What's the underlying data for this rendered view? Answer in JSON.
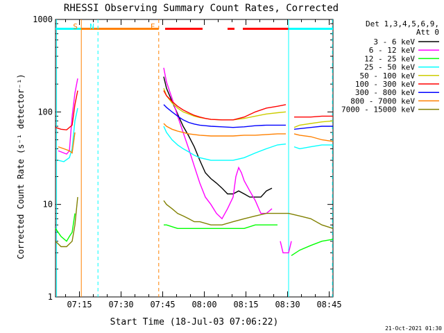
{
  "chart_data": {
    "type": "line",
    "title": "RHESSI Observing Summary Count Rates, Corrected",
    "xlabel": "Start Time (18-Jul-03 07:06:22)",
    "ylabel": "Corrected Count Rate (s⁻¹ detector⁻¹)",
    "footer": "21-Oct-2021 01:30",
    "y_scale": "log",
    "ylim": [
      1,
      1000
    ],
    "xlim_minutes": [
      0,
      100
    ],
    "x_ticks": [
      {
        "label": "07:15",
        "t": 8.63
      },
      {
        "label": "07:30",
        "t": 23.63
      },
      {
        "label": "07:45",
        "t": 38.63
      },
      {
        "label": "08:00",
        "t": 53.63
      },
      {
        "label": "08:15",
        "t": 68.63
      },
      {
        "label": "08:30",
        "t": 83.63
      },
      {
        "label": "08:45",
        "t": 98.63
      }
    ],
    "y_tick_labels": [
      {
        "label": "1",
        "v": 1
      },
      {
        "label": "10",
        "v": 10
      },
      {
        "label": "100",
        "v": 100
      },
      {
        "label": "1000",
        "v": 1000
      }
    ],
    "legend_header": [
      "Det 1,3,4,5,6,9,",
      "Att 0"
    ],
    "legend_position": "right",
    "series": [
      {
        "name": "3 - 6 keV",
        "color": "#000000",
        "segments": [
          [
            [
              39,
              240
            ],
            [
              40,
              180
            ],
            [
              42,
              130
            ],
            [
              44,
              95
            ],
            [
              46,
              70
            ],
            [
              48,
              55
            ],
            [
              50,
              42
            ],
            [
              52,
              30
            ],
            [
              54,
              22
            ],
            [
              56,
              19
            ],
            [
              58,
              17
            ],
            [
              60,
              15
            ],
            [
              62,
              13
            ],
            [
              64,
              13
            ],
            [
              66,
              14
            ],
            [
              68,
              13
            ],
            [
              70,
              12
            ],
            [
              72,
              12
            ],
            [
              74,
              12
            ],
            [
              76,
              14
            ],
            [
              78,
              15
            ]
          ]
        ]
      },
      {
        "name": "6 - 12 keV",
        "color": "#ff00ff",
        "segments": [
          [
            [
              1,
              38
            ],
            [
              2,
              37
            ],
            [
              3,
              36
            ],
            [
              4,
              35
            ],
            [
              5,
              38
            ],
            [
              6,
              90
            ],
            [
              7,
              160
            ],
            [
              8,
              230
            ]
          ],
          [
            [
              39,
              300
            ],
            [
              40,
              210
            ],
            [
              42,
              140
            ],
            [
              44,
              90
            ],
            [
              46,
              60
            ],
            [
              48,
              40
            ],
            [
              50,
              26
            ],
            [
              52,
              17
            ],
            [
              54,
              12
            ],
            [
              56,
              10
            ],
            [
              58,
              8
            ],
            [
              60,
              7
            ],
            [
              62,
              9
            ],
            [
              64,
              12
            ],
            [
              65,
              20
            ],
            [
              66,
              25
            ],
            [
              67,
              22
            ],
            [
              68,
              18
            ],
            [
              70,
              14
            ],
            [
              72,
              11
            ],
            [
              74,
              8
            ],
            [
              76,
              8
            ],
            [
              78,
              9
            ]
          ],
          [
            [
              81,
              4
            ],
            [
              82,
              3
            ],
            [
              84,
              3
            ],
            [
              85,
              4
            ]
          ]
        ]
      },
      {
        "name": "12 - 25 keV",
        "color": "#00ff00",
        "segments": [
          [
            [
              0,
              5.5
            ],
            [
              2,
              4.5
            ],
            [
              4,
              4
            ],
            [
              5,
              4.5
            ],
            [
              6,
              5
            ],
            [
              7,
              8
            ]
          ],
          [
            [
              39,
              6
            ],
            [
              40,
              6
            ],
            [
              44,
              5.5
            ],
            [
              48,
              5.5
            ],
            [
              52,
              5.5
            ],
            [
              56,
              5.5
            ],
            [
              60,
              5.5
            ],
            [
              64,
              5.5
            ],
            [
              68,
              5.5
            ],
            [
              72,
              6
            ],
            [
              76,
              6
            ],
            [
              80,
              6
            ]
          ],
          [
            [
              85,
              2.8
            ],
            [
              88,
              3.2
            ],
            [
              92,
              3.6
            ],
            [
              96,
              4.0
            ],
            [
              100,
              4.2
            ]
          ]
        ]
      },
      {
        "name": "25 - 50 keV",
        "color": "#00ffff",
        "segments": [
          [
            [
              1,
              30
            ],
            [
              3,
              29
            ],
            [
              5,
              32
            ],
            [
              6,
              40
            ],
            [
              7,
              80
            ],
            [
              8,
              110
            ]
          ],
          [
            [
              39,
              70
            ],
            [
              40,
              60
            ],
            [
              42,
              50
            ],
            [
              44,
              44
            ],
            [
              46,
              40
            ],
            [
              48,
              37
            ],
            [
              50,
              34
            ],
            [
              52,
              32
            ],
            [
              54,
              31
            ],
            [
              56,
              30
            ],
            [
              60,
              30
            ],
            [
              64,
              30
            ],
            [
              68,
              32
            ],
            [
              72,
              36
            ],
            [
              76,
              40
            ],
            [
              80,
              44
            ],
            [
              83,
              45
            ]
          ],
          [
            [
              86,
              42
            ],
            [
              88,
              40
            ],
            [
              92,
              42
            ],
            [
              96,
              44
            ],
            [
              100,
              44
            ]
          ]
        ]
      },
      {
        "name": "50 - 100 keV",
        "color": "#cccc00",
        "segments": [
          [
            [
              39,
              180
            ],
            [
              40,
              150
            ],
            [
              42,
              125
            ],
            [
              44,
              110
            ],
            [
              46,
              100
            ],
            [
              48,
              95
            ],
            [
              50,
              90
            ],
            [
              52,
              87
            ],
            [
              54,
              85
            ],
            [
              56,
              83
            ],
            [
              60,
              82
            ],
            [
              64,
              82
            ],
            [
              68,
              85
            ],
            [
              72,
              90
            ],
            [
              76,
              95
            ],
            [
              80,
              98
            ],
            [
              83,
              100
            ]
          ],
          [
            [
              86,
              68
            ],
            [
              88,
              72
            ],
            [
              92,
              75
            ],
            [
              96,
              78
            ],
            [
              100,
              80
            ]
          ]
        ]
      },
      {
        "name": "100 - 300 keV",
        "color": "#ff0000",
        "segments": [
          [
            [
              0,
              68
            ],
            [
              2,
              65
            ],
            [
              4,
              64
            ],
            [
              6,
              72
            ],
            [
              7,
              120
            ],
            [
              8,
              170
            ]
          ],
          [
            [
              39,
              170
            ],
            [
              40,
              150
            ],
            [
              42,
              130
            ],
            [
              44,
              115
            ],
            [
              46,
              105
            ],
            [
              48,
              98
            ],
            [
              50,
              92
            ],
            [
              52,
              88
            ],
            [
              54,
              85
            ],
            [
              56,
              83
            ],
            [
              60,
              82
            ],
            [
              64,
              82
            ],
            [
              68,
              88
            ],
            [
              72,
              100
            ],
            [
              76,
              110
            ],
            [
              80,
              115
            ],
            [
              83,
              120
            ]
          ],
          [
            [
              86,
              88
            ],
            [
              88,
              88
            ],
            [
              92,
              88
            ],
            [
              96,
              90
            ],
            [
              100,
              90
            ]
          ]
        ]
      },
      {
        "name": "300 - 800 keV",
        "color": "#0000ff",
        "segments": [
          [
            [
              39,
              120
            ],
            [
              40,
              112
            ],
            [
              42,
              100
            ],
            [
              44,
              90
            ],
            [
              46,
              82
            ],
            [
              48,
              77
            ],
            [
              50,
              74
            ],
            [
              52,
              72
            ],
            [
              54,
              71
            ],
            [
              56,
              70
            ],
            [
              60,
              69
            ],
            [
              64,
              68
            ],
            [
              68,
              69
            ],
            [
              72,
              71
            ],
            [
              76,
              72
            ],
            [
              80,
              72
            ],
            [
              83,
              72
            ]
          ],
          [
            [
              86,
              65
            ],
            [
              88,
              66
            ],
            [
              92,
              68
            ],
            [
              96,
              70
            ],
            [
              100,
              70
            ]
          ]
        ]
      },
      {
        "name": "800 - 7000 keV",
        "color": "#ff8000",
        "segments": [
          [
            [
              1,
              42
            ],
            [
              3,
              40
            ],
            [
              5,
              38
            ],
            [
              6,
              36
            ],
            [
              7,
              60
            ]
          ],
          [
            [
              39,
              75
            ],
            [
              40,
              70
            ],
            [
              42,
              65
            ],
            [
              44,
              62
            ],
            [
              46,
              60
            ],
            [
              48,
              58
            ],
            [
              52,
              56
            ],
            [
              56,
              55
            ],
            [
              60,
              55
            ],
            [
              64,
              55
            ],
            [
              68,
              56
            ],
            [
              72,
              56
            ],
            [
              76,
              57
            ],
            [
              80,
              58
            ],
            [
              83,
              58
            ]
          ],
          [
            [
              86,
              58
            ],
            [
              88,
              56
            ],
            [
              92,
              54
            ],
            [
              96,
              50
            ],
            [
              100,
              48
            ]
          ]
        ]
      },
      {
        "name": "7000 - 15000 keV",
        "color": "#808000",
        "segments": [
          [
            [
              0,
              4
            ],
            [
              2,
              3.5
            ],
            [
              4,
              3.5
            ],
            [
              6,
              4
            ],
            [
              7,
              6
            ],
            [
              8,
              12
            ]
          ],
          [
            [
              39,
              11
            ],
            [
              40,
              10
            ],
            [
              42,
              9
            ],
            [
              44,
              8
            ],
            [
              46,
              7.5
            ],
            [
              48,
              7
            ],
            [
              50,
              6.5
            ],
            [
              52,
              6.5
            ],
            [
              56,
              6
            ],
            [
              60,
              6
            ],
            [
              64,
              6.5
            ],
            [
              68,
              7
            ],
            [
              72,
              7.5
            ],
            [
              76,
              8
            ],
            [
              80,
              8
            ],
            [
              84,
              8
            ],
            [
              88,
              7.5
            ],
            [
              92,
              7
            ],
            [
              96,
              6
            ],
            [
              100,
              5.5
            ]
          ]
        ]
      }
    ],
    "markers": [
      {
        "label": "S",
        "t": 9.3,
        "color": "#ff8000",
        "style": "solid"
      },
      {
        "label": "N",
        "t": 15.3,
        "color": "#00ffff",
        "style": "dashed"
      },
      {
        "label": "F",
        "t": 37.2,
        "color": "#ff8000",
        "style": "dashed"
      },
      {
        "t": 0.4,
        "color": "#00ffff",
        "style": "solid"
      },
      {
        "t": 84.0,
        "color": "#00ffff",
        "style": "solid"
      },
      {
        "t": 99.8,
        "color": "#00ffff",
        "style": "dashed"
      }
    ],
    "top_bars": [
      {
        "color": "#00ffff",
        "from": 0,
        "to": 15.3
      },
      {
        "color": "#ff8000",
        "from": 9.3,
        "to": 37.2
      },
      {
        "color": "#ff0000",
        "from": 39.5,
        "to": 53.0
      },
      {
        "color": "#ff0000",
        "from": 62.0,
        "to": 64.5
      },
      {
        "color": "#ff0000",
        "from": 67.5,
        "to": 84.0
      },
      {
        "color": "#00ffff",
        "from": 84.0,
        "to": 100
      }
    ]
  }
}
